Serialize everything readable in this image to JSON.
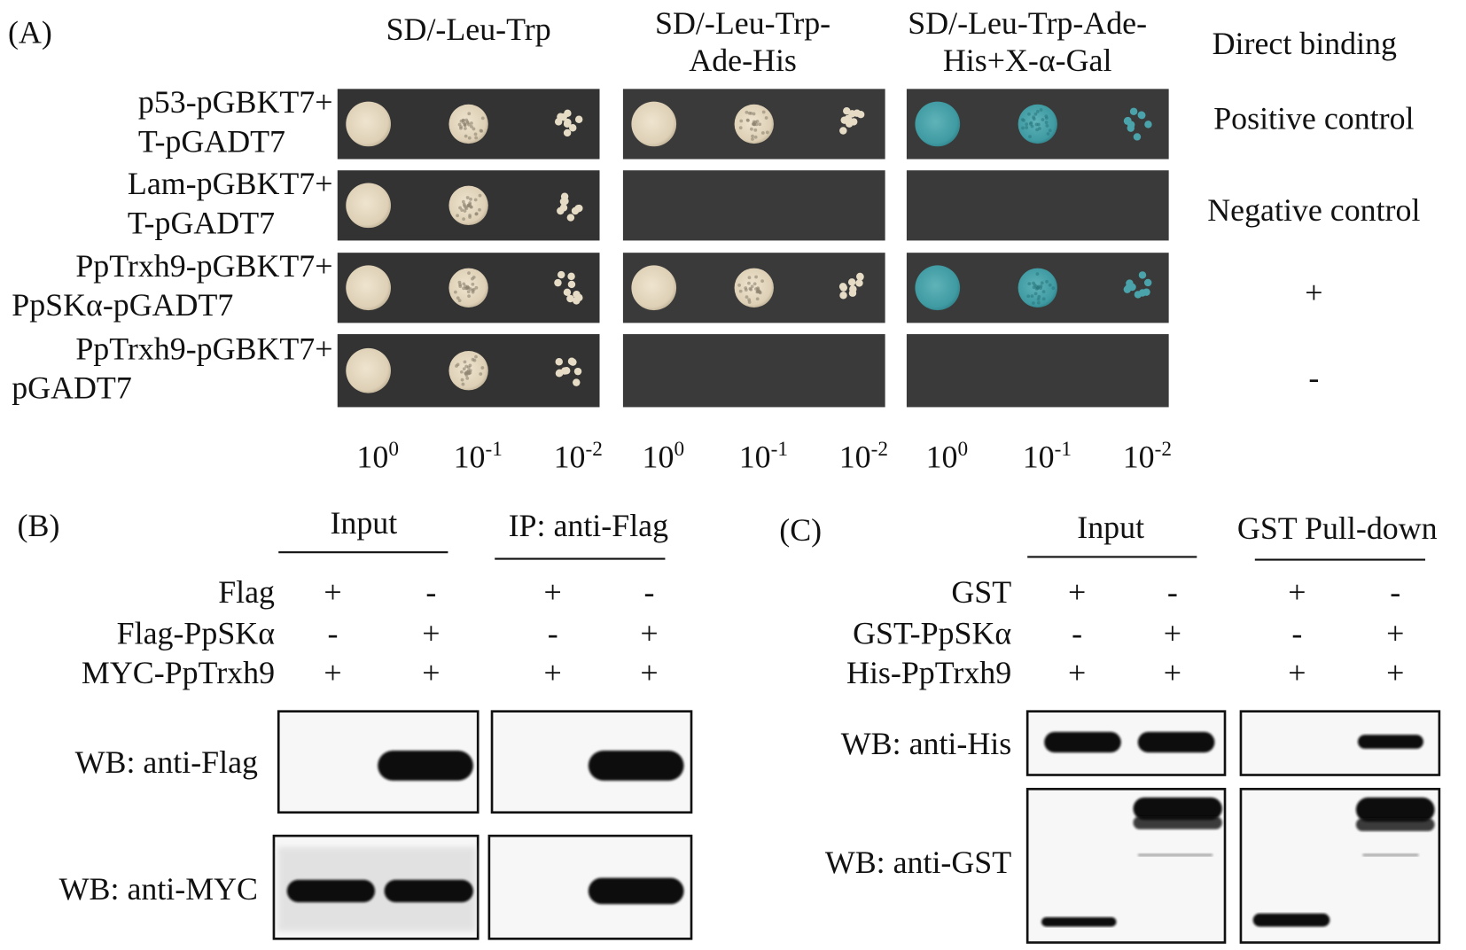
{
  "panel_a": {
    "label": "(A)",
    "media": [
      {
        "title": [
          "SD/-Leu-Trp"
        ],
        "dilutions": [
          {
            "base": "10",
            "exp": "0"
          },
          {
            "base": "10",
            "exp": "-1"
          },
          {
            "base": "10",
            "exp": "-2"
          }
        ]
      },
      {
        "title": [
          "SD/-Leu-Trp-",
          "Ade-His"
        ],
        "dilutions": [
          {
            "base": "10",
            "exp": "0"
          },
          {
            "base": "10",
            "exp": "-1"
          },
          {
            "base": "10",
            "exp": "-2"
          }
        ]
      },
      {
        "title": [
          "SD/-Leu-Trp-Ade-",
          "His+X-α-Gal"
        ],
        "dilutions": [
          {
            "base": "10",
            "exp": "0"
          },
          {
            "base": "10",
            "exp": "-1"
          },
          {
            "base": "10",
            "exp": "-2"
          }
        ]
      }
    ],
    "result_header": "Direct binding",
    "rows": [
      {
        "label": [
          "p53-pGBKT7+",
          "T-pGADT7"
        ],
        "result": "Positive control",
        "growth": [
          true,
          true,
          true
        ]
      },
      {
        "label": [
          "Lam-pGBKT7+",
          "T-pGADT7"
        ],
        "result": "Negative control",
        "growth": [
          true,
          false,
          false
        ]
      },
      {
        "label": [
          "PpTrxh9-pGBKT7+",
          "PpSKα-pGADT7"
        ],
        "result": "+",
        "growth": [
          true,
          true,
          true
        ]
      },
      {
        "label": [
          "PpTrxh9-pGBKT7+",
          "pGADT7"
        ],
        "result": "-",
        "growth": [
          true,
          false,
          false
        ]
      }
    ]
  },
  "panel_b": {
    "label": "(B)",
    "groups": [
      "Input",
      "IP: anti-Flag"
    ],
    "conditions": [
      {
        "name": "Flag",
        "signs": [
          "+",
          "-",
          "+",
          "-"
        ]
      },
      {
        "name": "Flag-PpSKα",
        "signs": [
          "-",
          "+",
          "-",
          "+"
        ]
      },
      {
        "name": "MYC-PpTrxh9",
        "signs": [
          "+",
          "+",
          "+",
          "+"
        ]
      }
    ],
    "blots": [
      "WB: anti-Flag",
      "WB: anti-MYC"
    ]
  },
  "panel_c": {
    "label": "(C)",
    "groups": [
      "Input",
      "GST Pull-down"
    ],
    "conditions": [
      {
        "name": "GST",
        "signs": [
          "+",
          "-",
          "+",
          "-"
        ]
      },
      {
        "name": "GST-PpSKα",
        "signs": [
          "-",
          "+",
          "-",
          "+"
        ]
      },
      {
        "name": "His-PpTrxh9",
        "signs": [
          "+",
          "+",
          "+",
          "+"
        ]
      }
    ],
    "blots": [
      "WB: anti-His",
      "WB: anti-GST"
    ]
  }
}
